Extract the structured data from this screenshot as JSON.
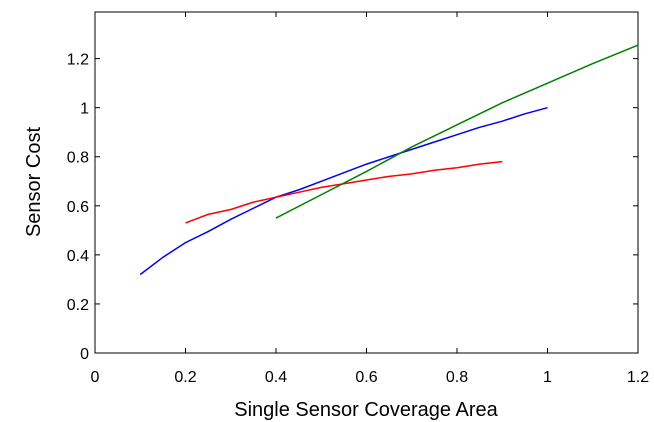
{
  "chart_data": {
    "type": "line",
    "xlabel": "Single Sensor Coverage Area",
    "ylabel": "Sensor Cost",
    "xlim": [
      0,
      1.2
    ],
    "xticks": [
      0,
      0.2,
      0.4,
      0.6,
      0.8,
      1,
      1.2
    ],
    "ylim": [
      0,
      1.39
    ],
    "yticks": [
      0,
      0.2,
      0.4,
      0.6,
      0.8,
      1,
      1.2
    ],
    "grid": false,
    "series": [
      {
        "color": "#0000ff",
        "x": [
          0.1,
          0.15,
          0.2,
          0.25,
          0.3,
          0.35,
          0.4,
          0.45,
          0.5,
          0.55,
          0.6,
          0.65,
          0.7,
          0.75,
          0.8,
          0.85,
          0.9,
          0.95,
          1.0
        ],
        "values": [
          0.32,
          0.39,
          0.45,
          0.495,
          0.545,
          0.59,
          0.635,
          0.665,
          0.7,
          0.735,
          0.77,
          0.8,
          0.83,
          0.86,
          0.89,
          0.92,
          0.945,
          0.975,
          1.0
        ]
      },
      {
        "color": "#ff0000",
        "x": [
          0.2,
          0.25,
          0.3,
          0.35,
          0.4,
          0.45,
          0.5,
          0.55,
          0.6,
          0.65,
          0.7,
          0.75,
          0.8,
          0.85,
          0.9
        ],
        "values": [
          0.53,
          0.565,
          0.585,
          0.615,
          0.635,
          0.655,
          0.675,
          0.69,
          0.705,
          0.72,
          0.73,
          0.745,
          0.755,
          0.77,
          0.78
        ]
      },
      {
        "color": "#008000",
        "x": [
          0.4,
          0.5,
          0.6,
          0.7,
          0.8,
          0.9,
          1.0,
          1.1,
          1.2
        ],
        "values": [
          0.55,
          0.645,
          0.74,
          0.84,
          0.93,
          1.02,
          1.1,
          1.18,
          1.255
        ]
      }
    ]
  }
}
